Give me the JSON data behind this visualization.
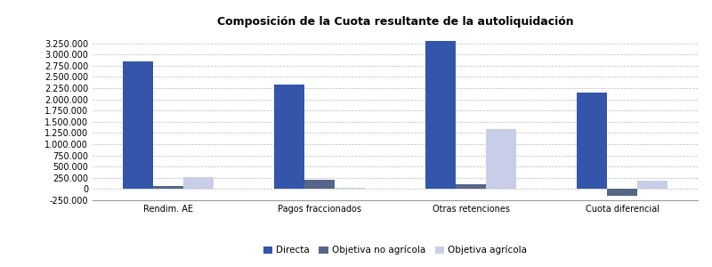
{
  "title": "Composición de la Cuota resultante de la autoliquidación",
  "categories": [
    "Rendim. AE",
    "Pagos fraccionados",
    "Otras retenciones",
    "Cuota diferencial"
  ],
  "series": {
    "Directa": [
      2850000,
      2320000,
      3300000,
      2160000
    ],
    "Objetiva no agrícola": [
      65000,
      215000,
      110000,
      -150000
    ],
    "Objetiva agrícola": [
      265000,
      20000,
      1330000,
      185000
    ]
  },
  "colors": {
    "Directa": "#3355aa",
    "Objetiva no agrícola": "#556688",
    "Objetiva agrícola": "#c8cde8"
  },
  "ylim": [
    -250000,
    3500000
  ],
  "yticks": [
    -250000,
    0,
    250000,
    500000,
    750000,
    1000000,
    1250000,
    1500000,
    1750000,
    2000000,
    2250000,
    2500000,
    2750000,
    3000000,
    3250000
  ],
  "background_color": "#ffffff",
  "grid_color": "#bbbbbb",
  "title_fontsize": 9,
  "legend_fontsize": 7.5,
  "tick_fontsize": 7,
  "bar_width": 0.2,
  "fig_width": 8.0,
  "fig_height": 3.0
}
